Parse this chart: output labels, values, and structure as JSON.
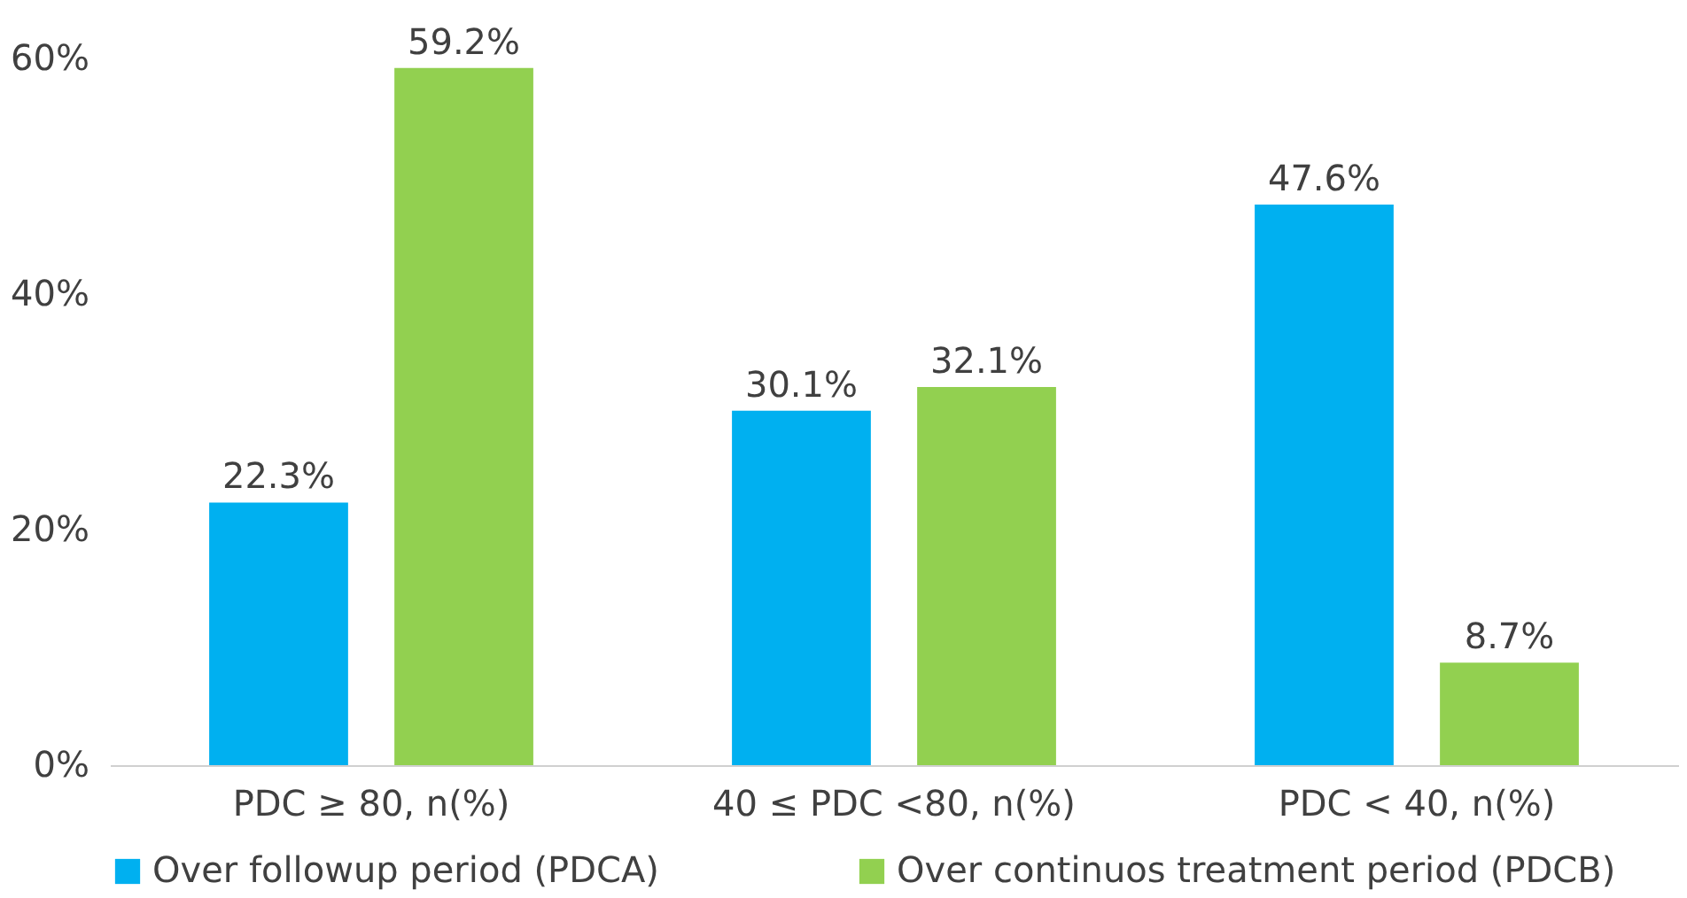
{
  "chart_data": {
    "type": "bar",
    "categories": [
      "PDC ≥ 80, n(%)",
      "40 ≤ PDC <80, n(%)",
      "PDC < 40, n(%)"
    ],
    "series": [
      {
        "name": "Over followup period (PDCA)",
        "color": "#00b0f0",
        "values": [
          22.3,
          30.1,
          47.6
        ],
        "value_labels": [
          "22.3%",
          "30.1%",
          "47.6%"
        ]
      },
      {
        "name": "Over continuos treatment period (PDCB)",
        "color": "#92d050",
        "values": [
          59.2,
          32.1,
          8.7
        ],
        "value_labels": [
          "59.2%",
          "32.1%",
          "8.7%"
        ]
      }
    ],
    "ylim": [
      0,
      60
    ],
    "yticks": [
      {
        "value": 0,
        "label": "0%"
      },
      {
        "value": 20,
        "label": "20%"
      },
      {
        "value": 40,
        "label": "40%"
      },
      {
        "value": 60,
        "label": "60%"
      }
    ],
    "grid": false,
    "legend": "bottom"
  }
}
